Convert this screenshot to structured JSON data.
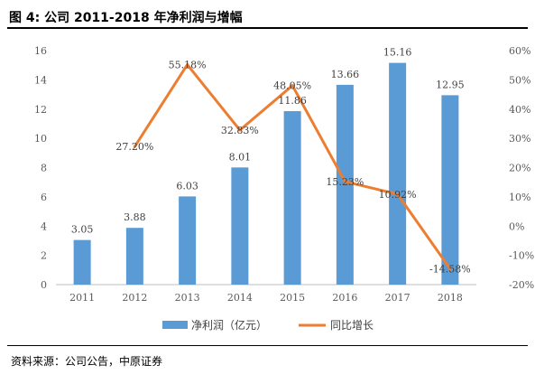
{
  "figure": {
    "title": "图 4:  公司 2011-2018 年净利润与增幅",
    "source": "资料来源：公司公告，中原证券"
  },
  "chart_data": {
    "type": "bar",
    "categories": [
      "2011",
      "2012",
      "2013",
      "2014",
      "2015",
      "2016",
      "2017",
      "2018"
    ],
    "series": [
      {
        "name": "净利润（亿元）",
        "type": "bar",
        "axis": "left",
        "color": "#5B9BD5",
        "values": [
          3.05,
          3.88,
          6.03,
          8.01,
          11.86,
          13.66,
          15.16,
          12.95
        ],
        "labels": [
          "3.05",
          "3.88",
          "6.03",
          "8.01",
          "11.86",
          "13.66",
          "15.16",
          "12.95"
        ]
      },
      {
        "name": "同比增长",
        "type": "line",
        "axis": "right",
        "color": "#ED7D31",
        "values": [
          null,
          27.2,
          55.18,
          32.83,
          48.05,
          15.23,
          10.92,
          -14.58
        ],
        "labels": [
          null,
          "27.20%",
          "55.18%",
          "32.83%",
          "48.05%",
          "15.23%",
          "10.92%",
          "-14.58%"
        ]
      }
    ],
    "y_left": {
      "min": 0,
      "max": 16,
      "ticks": [
        "0",
        "2",
        "4",
        "6",
        "8",
        "10",
        "12",
        "14",
        "16"
      ]
    },
    "y_right": {
      "min": -20,
      "max": 60,
      "ticks": [
        "-20%",
        "-10%",
        "0%",
        "10%",
        "20%",
        "30%",
        "40%",
        "50%",
        "60%"
      ]
    },
    "grid": false,
    "legend": "bottom"
  }
}
